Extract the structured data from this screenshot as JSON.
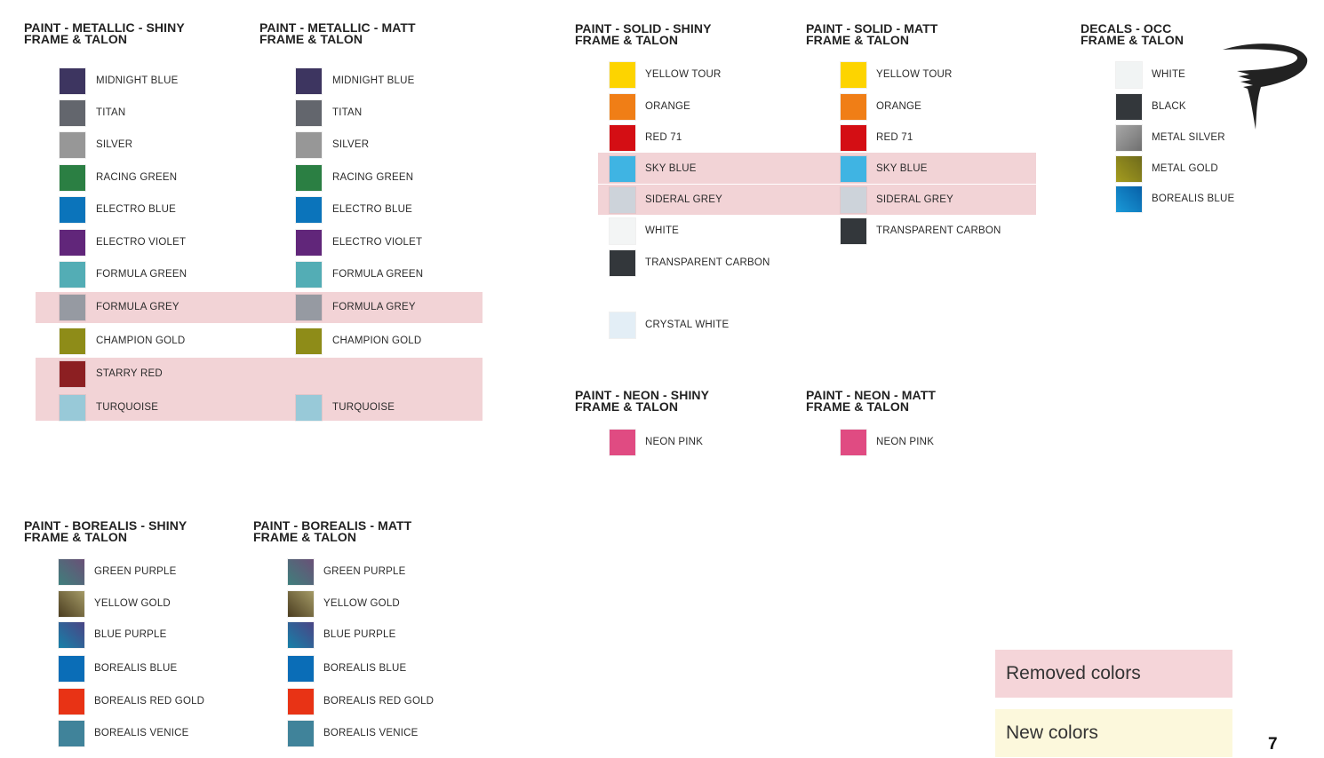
{
  "sections": [
    {
      "id": "metallic-shiny",
      "title": [
        "PAINT - METALLIC - SHINY",
        "FRAME & TALON"
      ],
      "items": [
        {
          "label": "MIDNIGHT BLUE",
          "color": "#3d3560"
        },
        {
          "label": "TITAN",
          "color": "#63666d"
        },
        {
          "label": "SILVER",
          "color": "#979797"
        },
        {
          "label": "RACING GREEN",
          "color": "#2b7f43"
        },
        {
          "label": "ELECTRO BLUE",
          "color": "#0b74bb"
        },
        {
          "label": "ELECTRO VIOLET",
          "color": "#61267a"
        },
        {
          "label": "FORMULA GREEN",
          "color": "#53adb5"
        },
        {
          "label": "FORMULA GREY",
          "color": "#969aa2",
          "removed": true
        },
        {
          "label": "CHAMPION GOLD",
          "color": "#8e8c18"
        },
        {
          "label": "STARRY RED",
          "color": "#8c1f22",
          "removed": true
        },
        {
          "label": "TURQUOISE",
          "color": "#98c9d8",
          "removed": true
        }
      ]
    },
    {
      "id": "metallic-matt",
      "title": [
        "PAINT - METALLIC - MATT",
        "FRAME & TALON"
      ],
      "items": [
        {
          "label": "MIDNIGHT BLUE",
          "color": "#3d3560"
        },
        {
          "label": "TITAN",
          "color": "#63666d"
        },
        {
          "label": "SILVER",
          "color": "#979797"
        },
        {
          "label": "RACING GREEN",
          "color": "#2b7f43"
        },
        {
          "label": "ELECTRO BLUE",
          "color": "#0b74bb"
        },
        {
          "label": "ELECTRO VIOLET",
          "color": "#61267a"
        },
        {
          "label": "FORMULA GREEN",
          "color": "#53adb5"
        },
        {
          "label": "FORMULA GREY",
          "color": "#969aa2"
        },
        {
          "label": "CHAMPION GOLD",
          "color": "#8e8c18"
        },
        null,
        {
          "label": "TURQUOISE",
          "color": "#98c9d8"
        }
      ]
    },
    {
      "id": "solid-shiny",
      "title": [
        "PAINT - SOLID - SHINY",
        "FRAME & TALON"
      ],
      "items": [
        {
          "label": "YELLOW TOUR",
          "color": "#fdd400"
        },
        {
          "label": "ORANGE",
          "color": "#f07e16"
        },
        {
          "label": "RED 71",
          "color": "#d40e14"
        },
        {
          "label": "SKY BLUE",
          "color": "#3fb4e3"
        },
        {
          "label": "SIDERAL GREY",
          "color": "#cdd3da"
        },
        {
          "label": "WHITE",
          "color": "#f3f5f5"
        },
        {
          "label": "TRANSPARENT CARBON",
          "color": "#33373b"
        },
        null,
        {
          "label": "CRYSTAL WHITE",
          "color": "#e3eef6"
        }
      ]
    },
    {
      "id": "solid-matt",
      "title": [
        "PAINT - SOLID - MATT",
        "FRAME & TALON"
      ],
      "items": [
        {
          "label": "YELLOW TOUR",
          "color": "#fdd400"
        },
        {
          "label": "ORANGE",
          "color": "#f07e16"
        },
        {
          "label": "RED 71",
          "color": "#d40e14"
        },
        {
          "label": "SKY BLUE",
          "color": "#3fb4e3"
        },
        {
          "label": "SIDERAL GREY",
          "color": "#cdd3da"
        },
        {
          "label": "TRANSPARENT CARBON",
          "color": "#33373b"
        }
      ]
    },
    {
      "id": "decals-occ",
      "title": [
        "DECALS - OCC",
        "FRAME & TALON"
      ],
      "items": [
        {
          "label": "WHITE",
          "color": "#f1f4f4"
        },
        {
          "label": "BLACK",
          "color": "#33373b"
        },
        {
          "label": "METAL SILVER",
          "color": "linear-gradient(135deg,#a8a8a8,#6f6f6f)"
        },
        {
          "label": "METAL GOLD",
          "color": "linear-gradient(45deg,#a59d1e,#6e6a1c)"
        },
        {
          "label": "BOREALIS BLUE",
          "color": "linear-gradient(45deg,#1a9ad8,#0760a8)"
        }
      ]
    },
    {
      "id": "neon-shiny",
      "title": [
        "PAINT - NEON - SHINY",
        "FRAME & TALON"
      ],
      "items": [
        {
          "label": "NEON PINK",
          "color": "#e04b82"
        }
      ]
    },
    {
      "id": "neon-matt",
      "title": [
        "PAINT - NEON - MATT",
        "FRAME & TALON"
      ],
      "items": [
        {
          "label": "NEON PINK",
          "color": "#e04b82"
        }
      ]
    },
    {
      "id": "borealis-shiny",
      "title": [
        "PAINT - BOREALIS - SHINY",
        "FRAME & TALON"
      ],
      "items": [
        {
          "label": "GREEN PURPLE",
          "color": "linear-gradient(45deg,#3f7f7c,#6a5077)"
        },
        {
          "label": "YELLOW GOLD",
          "color": "linear-gradient(45deg,#4b3d20,#a49a66)"
        },
        {
          "label": "BLUE PURPLE",
          "color": "linear-gradient(45deg,#1780a8,#4b4585)"
        },
        {
          "label": "BOREALIS BLUE",
          "color": "#0a6db7"
        },
        {
          "label": "BOREALIS RED GOLD",
          "color": "#e83315"
        },
        {
          "label": "BOREALIS VENICE",
          "color": "#40839a"
        }
      ]
    },
    {
      "id": "borealis-matt",
      "title": [
        "PAINT - BOREALIS - MATT",
        "FRAME & TALON"
      ],
      "items": [
        {
          "label": "GREEN PURPLE",
          "color": "linear-gradient(45deg,#3f7f7c,#6a5077)"
        },
        {
          "label": "YELLOW GOLD",
          "color": "linear-gradient(45deg,#4b3d20,#a49a66)"
        },
        {
          "label": "BLUE PURPLE",
          "color": "linear-gradient(45deg,#1780a8,#4b4585)"
        },
        {
          "label": "BOREALIS BLUE",
          "color": "#0a6db7"
        },
        {
          "label": "BOREALIS RED GOLD",
          "color": "#e83315"
        },
        {
          "label": "BOREALIS VENICE",
          "color": "#40839a"
        }
      ]
    }
  ],
  "legend": {
    "removed": "Removed colors",
    "new": "New colors",
    "removed_color": "#f5d5d9",
    "new_color": "#fcf8dc"
  },
  "page_number": "7"
}
